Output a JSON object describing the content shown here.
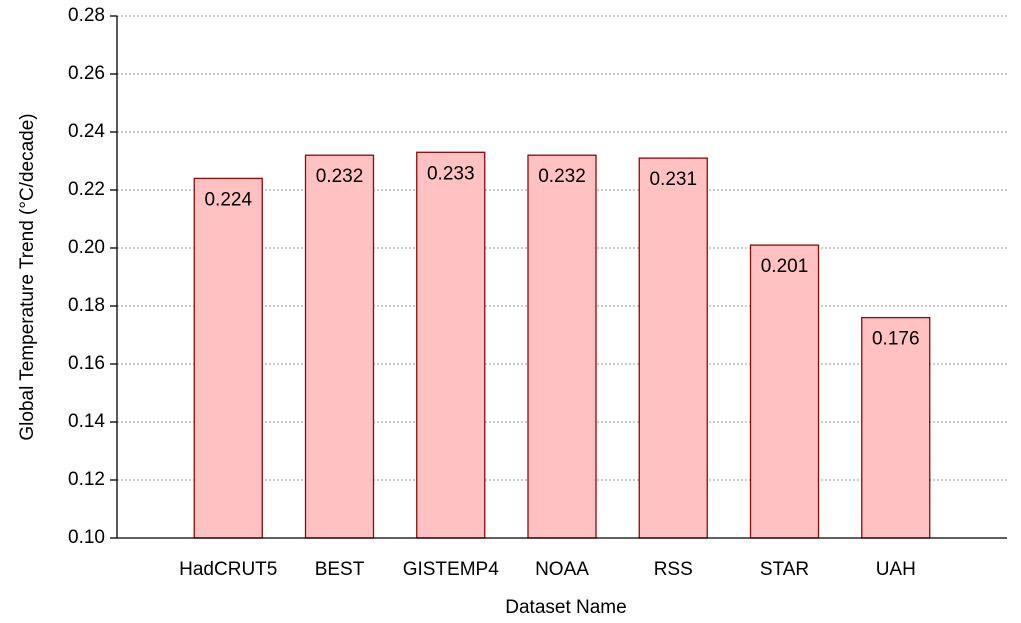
{
  "chart_data": {
    "type": "bar",
    "xlabel": "Dataset Name",
    "ylabel": "Global Temperature Trend (°C/decade)",
    "categories": [
      "HadCRUT5",
      "BEST",
      "GISTEMP4",
      "NOAA",
      "RSS",
      "STAR",
      "UAH"
    ],
    "values": [
      0.224,
      0.232,
      0.233,
      0.232,
      0.231,
      0.201,
      0.176
    ],
    "color": "#ffc1c1",
    "edgecolor": "#8b0a0a",
    "ylim": [
      0.1,
      0.28
    ],
    "yticks": [
      {
        "value": 0.1,
        "label": "0.10"
      },
      {
        "value": 0.12,
        "label": "0.12"
      },
      {
        "value": 0.14,
        "label": "0.14"
      },
      {
        "value": 0.16,
        "label": "0.16"
      },
      {
        "value": 0.18,
        "label": "0.18"
      },
      {
        "value": 0.2,
        "label": "0.20"
      },
      {
        "value": 0.22,
        "label": "0.22"
      },
      {
        "value": 0.24,
        "label": "0.24"
      },
      {
        "value": 0.26,
        "label": "0.26"
      },
      {
        "value": 0.28,
        "label": "0.28"
      }
    ],
    "grid": true
  }
}
